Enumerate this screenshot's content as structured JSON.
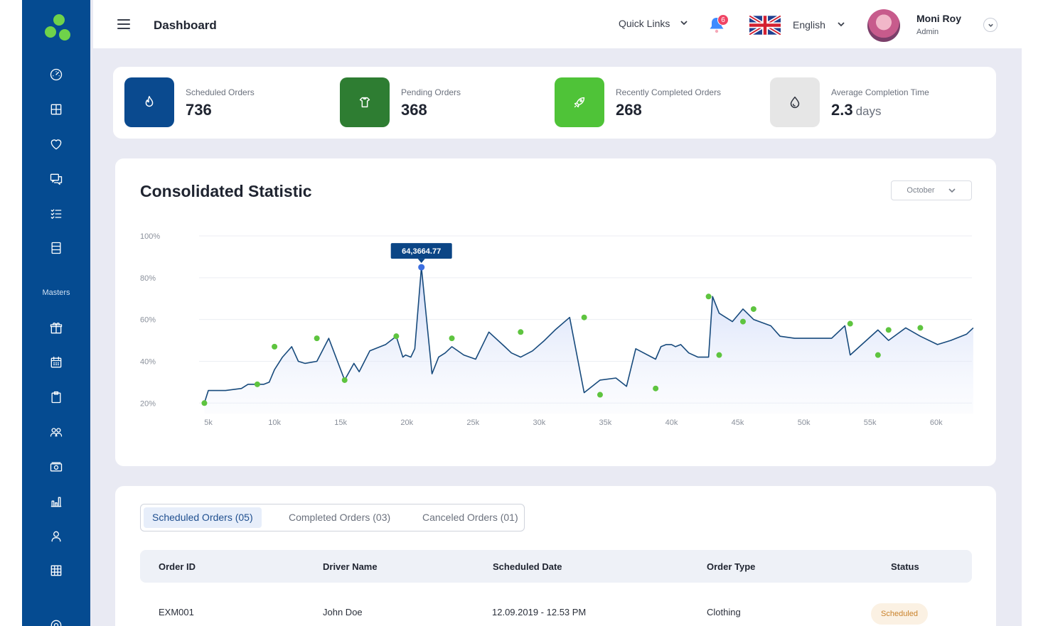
{
  "header": {
    "title": "Dashboard",
    "quick_links": "Quick Links",
    "notification_count": "6",
    "language": "English",
    "user_name": "Moni Roy",
    "user_role": "Admin"
  },
  "sidebar": {
    "section_label": "Masters",
    "icons": [
      "gauge-icon",
      "grid-icon",
      "heart-icon",
      "chat-icon",
      "checklist-icon",
      "list-icon",
      "gift-icon",
      "calendar-icon",
      "clipboard-icon",
      "users-icon",
      "cash-icon",
      "bar-chart-icon",
      "user-icon",
      "table-icon",
      "settings-icon"
    ]
  },
  "stats": [
    {
      "label": "Scheduled Orders",
      "value": "736",
      "unit": "",
      "icon": "flame-icon",
      "color": "#0a4a8f"
    },
    {
      "label": "Pending Orders",
      "value": "368",
      "unit": "",
      "icon": "box-icon",
      "color": "#2e7d32"
    },
    {
      "label": "Recently Completed Orders",
      "value": "268",
      "unit": "",
      "icon": "rocket-icon",
      "color": "#4fc338"
    },
    {
      "label": "Average Completion Time",
      "value": "2.3",
      "unit": "days",
      "icon": "drop-icon",
      "color": "#e6e6e6"
    }
  ],
  "chart": {
    "title": "Consolidated Statistic",
    "month": "October",
    "tooltip": "64,3664.77"
  },
  "chart_data": {
    "type": "area",
    "title": "Consolidated Statistic",
    "x_ticks": [
      "5k",
      "10k",
      "15k",
      "20k",
      "25k",
      "30k",
      "35k",
      "40k",
      "45k",
      "50k",
      "55k",
      "60k"
    ],
    "y_ticks": [
      "100%",
      "80%",
      "60%",
      "40%",
      "20%"
    ],
    "xlim": [
      4300,
      62700
    ],
    "ylim": [
      15,
      100
    ],
    "grid": true,
    "x": [
      4700,
      5000,
      6300,
      7500,
      8000,
      8700,
      9200,
      9600,
      10000,
      10600,
      11300,
      11800,
      12300,
      13200,
      14100,
      15300,
      16000,
      16400,
      17200,
      17600,
      18400,
      19200,
      19700,
      19900,
      20300,
      20600,
      21100,
      21900,
      22400,
      22900,
      23400,
      24300,
      25200,
      26200,
      27400,
      27900,
      28600,
      29500,
      30400,
      31200,
      32300,
      33400,
      34600,
      35800,
      36600,
      37300,
      38800,
      39200,
      39600,
      40000,
      40300,
      40700,
      41000,
      41300,
      42000,
      42500,
      42800,
      43100,
      43600,
      44600,
      45400,
      46200,
      47500,
      48200,
      49300,
      50600,
      52100,
      53100,
      53500,
      55600,
      56400,
      57700,
      58800,
      60100,
      61100,
      62300,
      62800
    ],
    "y": [
      20,
      26,
      26,
      27,
      29,
      29,
      29,
      30,
      36,
      42,
      47,
      40,
      39,
      40,
      51,
      31,
      39,
      35,
      45,
      46,
      48,
      52,
      42,
      43,
      42,
      46,
      85,
      34,
      42,
      44,
      47,
      43,
      41,
      54,
      47,
      44,
      42,
      45,
      50,
      55,
      61,
      25,
      31,
      32,
      28,
      46,
      41,
      47,
      48,
      48,
      47,
      48,
      46,
      44,
      42,
      42,
      42,
      71,
      63,
      59,
      65,
      60,
      57,
      52,
      51,
      51,
      51,
      57,
      43,
      55,
      50,
      56,
      52,
      48,
      50,
      53,
      56
    ],
    "markers": [
      [
        4700,
        20
      ],
      [
        8700,
        29
      ],
      [
        10000,
        47
      ],
      [
        13200,
        51
      ],
      [
        15300,
        31
      ],
      [
        19200,
        52
      ],
      [
        21100,
        85
      ],
      [
        23400,
        51
      ],
      [
        28600,
        54
      ],
      [
        33400,
        61
      ],
      [
        34600,
        24
      ],
      [
        38800,
        27
      ],
      [
        42800,
        71
      ],
      [
        43600,
        43
      ],
      [
        45400,
        59
      ],
      [
        46200,
        65
      ],
      [
        53500,
        58
      ],
      [
        55600,
        43
      ],
      [
        56400,
        55
      ],
      [
        58800,
        56
      ]
    ],
    "highlight": {
      "x": 21100,
      "y": 85,
      "label": "64,3664.77"
    }
  },
  "tabs": [
    {
      "label": "Scheduled Orders  (05)",
      "active": true
    },
    {
      "label": "Completed Orders (03)",
      "active": false
    },
    {
      "label": "Canceled Orders (01)",
      "active": false
    }
  ],
  "table": {
    "columns": [
      "Order ID",
      "Driver Name",
      "Scheduled Date",
      "Order Type",
      "Status"
    ],
    "rows": [
      [
        "EXM001",
        "John Doe",
        "12.09.2019 - 12.53 PM",
        "Clothing",
        "Scheduled"
      ]
    ]
  }
}
